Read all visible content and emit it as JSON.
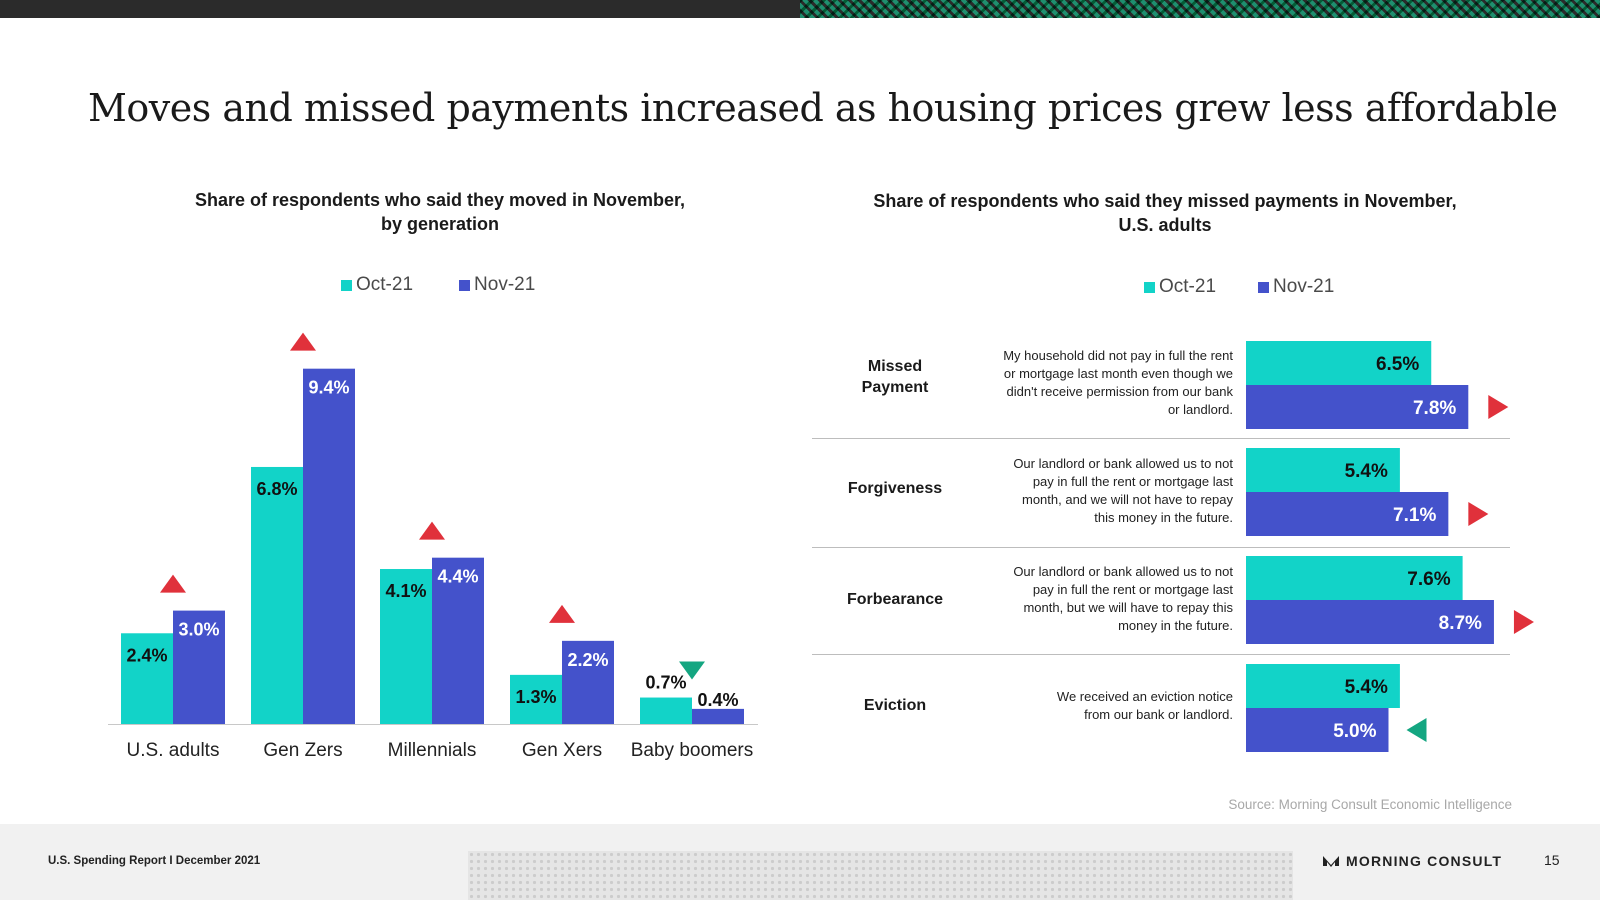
{
  "title": "Moves and missed payments increased as housing prices grew less affordable",
  "colors": {
    "oct": "#12d3c8",
    "nov": "#4452cb",
    "up": "#e0313b",
    "down": "#14a681"
  },
  "legend": {
    "oct": "Oct-21",
    "nov": "Nov-21"
  },
  "chart_data": [
    {
      "type": "bar",
      "title": "Share of respondents who said they moved in November, by generation",
      "title_line1": "Share of respondents who said they moved in November,",
      "title_line2": "by generation",
      "categories": [
        "U.S. adults",
        "Gen Zers",
        "Millennials",
        "Gen Xers",
        "Baby boomers"
      ],
      "series": [
        {
          "name": "Oct-21",
          "values": [
            2.4,
            6.8,
            4.1,
            1.3,
            0.7
          ],
          "labels": [
            "2.4%",
            "6.8%",
            "4.1%",
            "1.3%",
            "0.7%"
          ]
        },
        {
          "name": "Nov-21",
          "values": [
            3.0,
            9.4,
            4.4,
            2.2,
            0.4
          ],
          "labels": [
            "3.0%",
            "9.4%",
            "4.4%",
            "2.2%",
            "0.4%"
          ]
        }
      ],
      "change": [
        "up",
        "up",
        "up",
        "up",
        "down"
      ],
      "ylim": [
        0,
        10
      ]
    },
    {
      "type": "bar",
      "orientation": "horizontal",
      "title": "Share of respondents who said they missed payments in November, U.S. adults",
      "title_line1": "Share of respondents who said they missed payments in November,",
      "title_line2": "U.S. adults",
      "categories": [
        "Missed Payment",
        "Forgiveness",
        "Forbearance",
        "Eviction"
      ],
      "series": [
        {
          "name": "Oct-21",
          "values": [
            6.5,
            5.4,
            7.6,
            5.4
          ],
          "labels": [
            "6.5%",
            "5.4%",
            "7.6%",
            "5.4%"
          ]
        },
        {
          "name": "Nov-21",
          "values": [
            7.8,
            7.1,
            8.7,
            5.0
          ],
          "labels": [
            "7.8%",
            "7.1%",
            "8.7%",
            "5.0%"
          ]
        }
      ],
      "change": [
        "up",
        "up",
        "up",
        "down"
      ],
      "xlim": [
        0,
        10
      ]
    }
  ],
  "rows": [
    {
      "label_line1": "Missed",
      "label_line2": "Payment",
      "desc": [
        "My household did not pay in full the rent",
        "or mortgage last month even though we",
        "didn't receive permission from our bank",
        "or landlord."
      ]
    },
    {
      "label_line1": "Forgiveness",
      "label_line2": "",
      "desc": [
        "Our landlord or bank allowed us to not",
        "pay in full the rent or mortgage last",
        "month, and we will not have to repay",
        "this money in the future."
      ]
    },
    {
      "label_line1": "Forbearance",
      "label_line2": "",
      "desc": [
        "Our landlord or bank allowed us to not",
        "pay in full the rent or mortgage last",
        "month, but we will have to repay this",
        "money in the future."
      ]
    },
    {
      "label_line1": "Eviction",
      "label_line2": "",
      "desc": [
        "We received an eviction notice",
        "from our bank or landlord."
      ]
    }
  ],
  "source": "Source: Morning Consult Economic Intelligence",
  "footer": {
    "report": "U.S. Spending Report I December 2021",
    "brand": "MORNING CONSULT",
    "page": "15"
  }
}
